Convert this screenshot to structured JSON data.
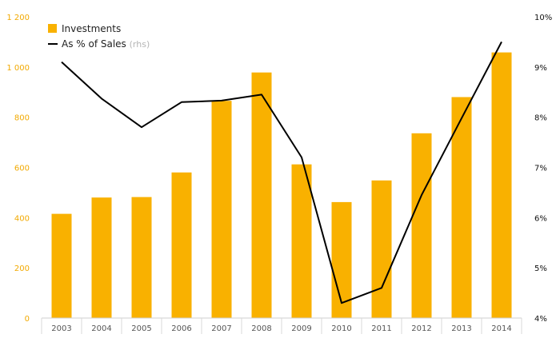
{
  "chart_data": {
    "type": "bar",
    "categories": [
      "2003",
      "2004",
      "2005",
      "2006",
      "2007",
      "2008",
      "2009",
      "2010",
      "2011",
      "2012",
      "2013",
      "2014"
    ],
    "series": [
      {
        "name": "Investments",
        "type": "bar",
        "axis": "left",
        "color": "#f9b100",
        "values": [
          415,
          480,
          482,
          580,
          865,
          978,
          612,
          462,
          548,
          736,
          880,
          1058
        ]
      },
      {
        "name": "As % of Sales",
        "type": "line",
        "axis": "right",
        "color": "#000000",
        "values": [
          9.1,
          8.37,
          7.8,
          8.3,
          8.33,
          8.45,
          7.2,
          4.3,
          4.6,
          6.45,
          7.98,
          9.5
        ]
      }
    ],
    "legend": {
      "position": "top-left",
      "items": [
        {
          "label": "Investments",
          "suffix": "",
          "marker": "square"
        },
        {
          "label": "As % of Sales",
          "suffix": "(rhs)",
          "marker": "line"
        }
      ]
    },
    "left_axis": {
      "ylim": [
        0,
        1200
      ],
      "ticks": [
        0,
        200,
        400,
        600,
        800,
        1000,
        1200
      ],
      "tick_labels": [
        "0",
        "200",
        "400",
        "600",
        "800",
        "1 000",
        "1 200"
      ],
      "color": "#f2a900"
    },
    "right_axis": {
      "ylim": [
        4,
        10
      ],
      "ticks": [
        4,
        5,
        6,
        7,
        8,
        9,
        10
      ],
      "tick_labels": [
        "4%",
        "5%",
        "6%",
        "7%",
        "8%",
        "9%",
        "10%"
      ],
      "color": "#111111"
    },
    "grid": false
  }
}
